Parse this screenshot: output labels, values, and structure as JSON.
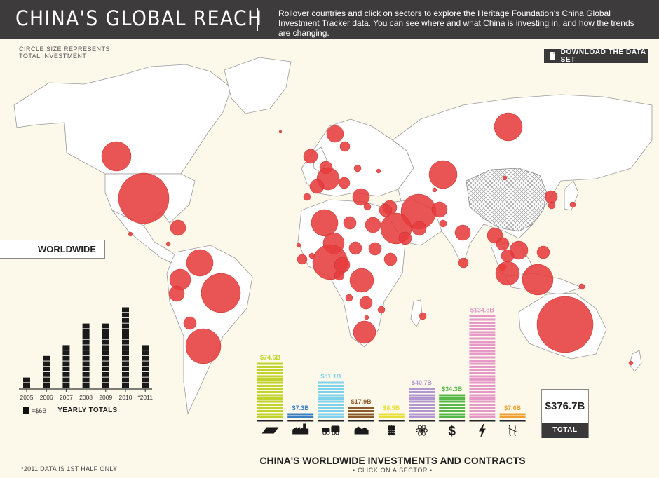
{
  "header": {
    "title": "CHINA'S GLOBAL REACH",
    "description": "Rollover countries and click on sectors to explore the Heritage Foundation's China Global Investment Tracker data. You can see where and what China is investing in, and how the trends are changing."
  },
  "legend_note": "CIRCLE SIZE REPRESENTS TOTAL INVESTMENT",
  "download_label": "DOWNLOAD THE DATA SET",
  "worldwide_label": "WORLDWIDE",
  "yearly": {
    "unit_label": "=$6B",
    "label": "YEARLY TOTALS",
    "footnote": "*2011 DATA IS 1ST HALF ONLY"
  },
  "total": {
    "value": "$376.7B",
    "label": "TOTAL"
  },
  "sector_chart_title": "CHINA'S WORLDWIDE INVESTMENTS AND CONTRACTS",
  "sector_chart_subtitle": "• CLICK ON A SECTOR •",
  "colors": {
    "header_bg": "#3d3b3b",
    "bubble": "#e63c3c",
    "land": "#ffffff",
    "ocean": "#fcf9ea"
  },
  "chart_data": [
    {
      "type": "bar",
      "title": "",
      "categories": [
        "2005",
        "2006",
        "2007",
        "2008",
        "2009",
        "2010",
        "*2011"
      ],
      "values": [
        2,
        6,
        8,
        12,
        12,
        15,
        8
      ],
      "unit": "blocks of $6B",
      "ylim": [
        0,
        15
      ]
    },
    {
      "type": "bar",
      "title": "CHINA'S WORLDWIDE INVESTMENTS AND CONTRACTS",
      "categories": [
        "Metals",
        "Manufacturing",
        "Transport",
        "Real Estate",
        "Agriculture",
        "Nuclear",
        "Finance",
        "Power",
        "Other"
      ],
      "icons": [
        "metal-ingot-icon",
        "factory-icon",
        "transport-icon",
        "real-estate-icon",
        "agriculture-icon",
        "nuclear-icon",
        "finance-icon",
        "power-icon",
        "other-icon"
      ],
      "values": [
        74.6,
        7.3,
        51.1,
        17.9,
        8.5,
        40.7,
        34.3,
        134.8,
        7.6
      ],
      "value_labels": [
        "$74.6B",
        "$7.3B",
        "$51.1B",
        "$17.9B",
        "$8.5B",
        "$40.7B",
        "$34.3B",
        "$134.8B",
        "$7.6B"
      ],
      "colors": [
        "#c0d42c",
        "#3a7fc4",
        "#7fd2ee",
        "#8b5a2b",
        "#e8e03a",
        "#b296d2",
        "#55b848",
        "#e698c8",
        "#f0a030"
      ],
      "unit": "$B"
    },
    {
      "type": "scatter",
      "title": "",
      "series": [
        {
          "name": "",
          "points": [
            {
              "region": "Canada",
              "size": 3
            },
            {
              "region": "USA",
              "size": 6
            },
            {
              "region": "Mexico",
              "size": 0.5
            },
            {
              "region": "Cuba",
              "size": 1.5
            },
            {
              "region": "Venezuela",
              "size": 2.5
            },
            {
              "region": "Colombia",
              "size": 1.5
            },
            {
              "region": "Ecuador",
              "size": 2
            },
            {
              "region": "Peru",
              "size": 2
            },
            {
              "region": "Brazil",
              "size": 5
            },
            {
              "region": "Bolivia",
              "size": 1
            },
            {
              "region": "Argentina",
              "size": 4
            },
            {
              "region": "Greenland",
              "size": 0
            },
            {
              "region": "Norway",
              "size": 1
            },
            {
              "region": "Sweden",
              "size": 0.5
            },
            {
              "region": "UK",
              "size": 2
            },
            {
              "region": "Germany",
              "size": 2
            },
            {
              "region": "France",
              "size": 2
            },
            {
              "region": "Spain",
              "size": 1
            },
            {
              "region": "Italy",
              "size": 1
            },
            {
              "region": "Greece",
              "size": 1
            },
            {
              "region": "Turkey",
              "size": 1
            },
            {
              "region": "Russia",
              "size": 3
            },
            {
              "region": "Kazakhstan",
              "size": 4
            },
            {
              "region": "Iran",
              "size": 5
            },
            {
              "region": "Saudi Arabia",
              "size": 5
            },
            {
              "region": "Iraq",
              "size": 1.5
            },
            {
              "region": "Syria",
              "size": 1
            },
            {
              "region": "Egypt",
              "size": 1
            },
            {
              "region": "Algeria",
              "size": 3
            },
            {
              "region": "Libya",
              "size": 2
            },
            {
              "region": "Niger",
              "size": 2
            },
            {
              "region": "Nigeria",
              "size": 4
            },
            {
              "region": "Ghana",
              "size": 1.5
            },
            {
              "region": "Guinea",
              "size": 1
            },
            {
              "region": "Sudan",
              "size": 1.5
            },
            {
              "region": "Ethiopia",
              "size": 1
            },
            {
              "region": "DR Congo",
              "size": 3
            },
            {
              "region": "Angola",
              "size": 1.5
            },
            {
              "region": "Zambia",
              "size": 1
            },
            {
              "region": "South Africa",
              "size": 2.5
            },
            {
              "region": "Afghanistan",
              "size": 1.5
            },
            {
              "region": "Pakistan",
              "size": 1
            },
            {
              "region": "India",
              "size": 1.5
            },
            {
              "region": "Sri Lanka",
              "size": 0.5
            },
            {
              "region": "Mongolia",
              "size": 0.3
            },
            {
              "region": "Korea",
              "size": 1
            },
            {
              "region": "Japan",
              "size": 0.5
            },
            {
              "region": "Myanmar",
              "size": 1.5
            },
            {
              "region": "Thailand",
              "size": 1
            },
            {
              "region": "Vietnam",
              "size": 1.5
            },
            {
              "region": "Laos",
              "size": 1
            },
            {
              "region": "Cambodia",
              "size": 1
            },
            {
              "region": "Malaysia",
              "size": 2
            },
            {
              "region": "Philippines",
              "size": 1
            },
            {
              "region": "Indonesia",
              "size": 4
            },
            {
              "region": "Australia",
              "size": 7
            },
            {
              "region": "New Zealand",
              "size": 0.3
            },
            {
              "region": "Madagascar",
              "size": 0.3
            },
            {
              "region": "Arctic Russia",
              "size": 2.5
            }
          ]
        }
      ]
    }
  ]
}
